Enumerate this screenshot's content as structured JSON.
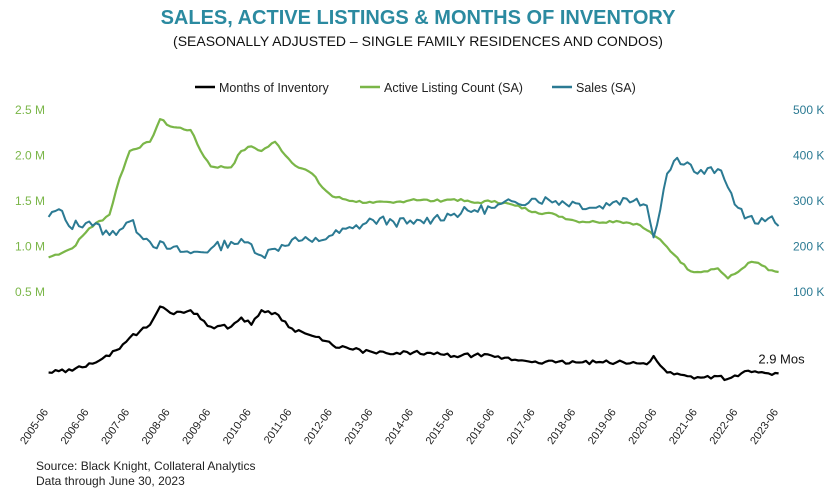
{
  "chart_data": {
    "type": "line",
    "title": "SALES, ACTIVE LISTINGS & MONTHS OF INVENTORY",
    "subtitle": "(SEASONALLY ADJUSTED – SINGLE FAMILY RESIDENCES AND CONDOS)",
    "legend": {
      "position": "top",
      "items": [
        {
          "label": "Months of Inventory",
          "color": "#000000"
        },
        {
          "label": "Active Listing Count (SA)",
          "color": "#7ab648"
        },
        {
          "label": "Sales (SA)",
          "color": "#2b7a93"
        }
      ]
    },
    "left_axis": {
      "range": [
        0.5,
        2.5
      ],
      "ticks": [
        {
          "value": 0.5,
          "label": "0.5 M"
        },
        {
          "value": 1.0,
          "label": "1.0 M"
        },
        {
          "value": 1.5,
          "label": "1.5 M"
        },
        {
          "value": 2.0,
          "label": "2.0 M"
        },
        {
          "value": 2.5,
          "label": "2.5 M"
        }
      ]
    },
    "right_axis": {
      "range": [
        100,
        500
      ],
      "ticks": [
        {
          "value": 100,
          "label": "100 K"
        },
        {
          "value": 200,
          "label": "200 K"
        },
        {
          "value": 300,
          "label": "300 K"
        },
        {
          "value": 400,
          "label": "400 K"
        },
        {
          "value": 500,
          "label": "500 K"
        }
      ]
    },
    "x_ticks": [
      "2005-06",
      "2006-06",
      "2007-06",
      "2008-06",
      "2009-06",
      "2010-06",
      "2011-06",
      "2012-06",
      "2013-06",
      "2014-06",
      "2015-06",
      "2016-06",
      "2017-06",
      "2018-06",
      "2019-06",
      "2020-06",
      "2021-06",
      "2022-06",
      "2023-06"
    ],
    "grid": false,
    "series": [
      {
        "name": "Active Listing Count (SA)",
        "axis": "left",
        "unit": "M",
        "color": "#7ab648",
        "points": [
          [
            "2005-06",
            0.88
          ],
          [
            "2006-01",
            0.98
          ],
          [
            "2006-06",
            1.2
          ],
          [
            "2006-12",
            1.35
          ],
          [
            "2007-03",
            1.75
          ],
          [
            "2007-06",
            2.05
          ],
          [
            "2007-12",
            2.15
          ],
          [
            "2008-03",
            2.4
          ],
          [
            "2008-06",
            2.32
          ],
          [
            "2008-12",
            2.28
          ],
          [
            "2009-03",
            2.05
          ],
          [
            "2009-06",
            1.88
          ],
          [
            "2009-12",
            1.87
          ],
          [
            "2010-03",
            2.05
          ],
          [
            "2010-06",
            2.1
          ],
          [
            "2010-09",
            2.05
          ],
          [
            "2011-01",
            2.15
          ],
          [
            "2011-06",
            1.92
          ],
          [
            "2011-12",
            1.8
          ],
          [
            "2012-03",
            1.65
          ],
          [
            "2012-06",
            1.55
          ],
          [
            "2012-12",
            1.5
          ],
          [
            "2013-06",
            1.48
          ],
          [
            "2013-12",
            1.48
          ],
          [
            "2014-06",
            1.52
          ],
          [
            "2014-12",
            1.5
          ],
          [
            "2015-06",
            1.52
          ],
          [
            "2015-12",
            1.48
          ],
          [
            "2016-06",
            1.5
          ],
          [
            "2016-12",
            1.45
          ],
          [
            "2017-06",
            1.38
          ],
          [
            "2017-12",
            1.35
          ],
          [
            "2018-06",
            1.28
          ],
          [
            "2018-12",
            1.27
          ],
          [
            "2019-06",
            1.28
          ],
          [
            "2019-12",
            1.25
          ],
          [
            "2020-03",
            1.18
          ],
          [
            "2020-06",
            1.1
          ],
          [
            "2020-12",
            0.88
          ],
          [
            "2021-03",
            0.75
          ],
          [
            "2021-06",
            0.72
          ],
          [
            "2021-12",
            0.76
          ],
          [
            "2022-03",
            0.65
          ],
          [
            "2022-06",
            0.72
          ],
          [
            "2022-09",
            0.82
          ],
          [
            "2022-12",
            0.82
          ],
          [
            "2023-03",
            0.74
          ],
          [
            "2023-06",
            0.72
          ]
        ]
      },
      {
        "name": "Sales (SA)",
        "axis": "right",
        "unit": "K",
        "color": "#2b7a93",
        "points": [
          [
            "2005-06",
            265
          ],
          [
            "2005-09",
            282
          ],
          [
            "2005-12",
            245
          ],
          [
            "2006-06",
            255
          ],
          [
            "2006-12",
            225
          ],
          [
            "2007-06",
            255
          ],
          [
            "2007-12",
            210
          ],
          [
            "2008-06",
            195
          ],
          [
            "2008-12",
            185
          ],
          [
            "2009-06",
            195
          ],
          [
            "2009-12",
            210
          ],
          [
            "2010-06",
            205
          ],
          [
            "2010-09",
            180
          ],
          [
            "2011-01",
            195
          ],
          [
            "2011-06",
            215
          ],
          [
            "2011-12",
            210
          ],
          [
            "2012-06",
            225
          ],
          [
            "2012-12",
            240
          ],
          [
            "2013-06",
            258
          ],
          [
            "2013-12",
            255
          ],
          [
            "2014-06",
            250
          ],
          [
            "2014-12",
            262
          ],
          [
            "2015-06",
            272
          ],
          [
            "2015-12",
            280
          ],
          [
            "2016-06",
            285
          ],
          [
            "2016-12",
            298
          ],
          [
            "2017-06",
            305
          ],
          [
            "2017-12",
            300
          ],
          [
            "2018-06",
            295
          ],
          [
            "2018-12",
            285
          ],
          [
            "2019-06",
            300
          ],
          [
            "2019-12",
            305
          ],
          [
            "2020-03",
            290
          ],
          [
            "2020-05",
            220
          ],
          [
            "2020-09",
            360
          ],
          [
            "2020-12",
            395
          ],
          [
            "2021-03",
            385
          ],
          [
            "2021-06",
            360
          ],
          [
            "2021-12",
            370
          ],
          [
            "2022-03",
            330
          ],
          [
            "2022-06",
            285
          ],
          [
            "2022-09",
            265
          ],
          [
            "2022-12",
            250
          ],
          [
            "2023-03",
            262
          ],
          [
            "2023-06",
            245
          ]
        ]
      },
      {
        "name": "Months of Inventory",
        "axis": "none",
        "unit": "Mos",
        "color": "#000000",
        "points": [
          [
            "2005-06",
            3.0
          ],
          [
            "2006-01",
            3.2
          ],
          [
            "2006-06",
            4.0
          ],
          [
            "2006-12",
            4.8
          ],
          [
            "2007-06",
            6.8
          ],
          [
            "2007-12",
            8.2
          ],
          [
            "2008-03",
            10.2
          ],
          [
            "2008-06",
            9.5
          ],
          [
            "2008-12",
            9.8
          ],
          [
            "2009-06",
            8.0
          ],
          [
            "2009-12",
            8.0
          ],
          [
            "2010-03",
            9.0
          ],
          [
            "2010-06",
            8.2
          ],
          [
            "2010-09",
            9.8
          ],
          [
            "2011-01",
            9.5
          ],
          [
            "2011-06",
            7.8
          ],
          [
            "2011-12",
            7.0
          ],
          [
            "2012-06",
            6.0
          ],
          [
            "2012-12",
            5.5
          ],
          [
            "2013-06",
            5.2
          ],
          [
            "2013-12",
            5.0
          ],
          [
            "2014-06",
            5.2
          ],
          [
            "2014-12",
            5.0
          ],
          [
            "2015-06",
            4.8
          ],
          [
            "2015-12",
            4.9
          ],
          [
            "2016-06",
            4.7
          ],
          [
            "2016-12",
            4.4
          ],
          [
            "2017-06",
            4.2
          ],
          [
            "2017-12",
            4.1
          ],
          [
            "2018-06",
            4.1
          ],
          [
            "2018-12",
            4.1
          ],
          [
            "2019-06",
            4.1
          ],
          [
            "2019-12",
            4.0
          ],
          [
            "2020-03",
            3.9
          ],
          [
            "2020-05",
            4.8
          ],
          [
            "2020-09",
            3.0
          ],
          [
            "2021-03",
            2.6
          ],
          [
            "2021-06",
            2.5
          ],
          [
            "2021-12",
            2.6
          ],
          [
            "2022-03",
            2.3
          ],
          [
            "2022-06",
            2.6
          ],
          [
            "2022-09",
            3.2
          ],
          [
            "2022-12",
            3.0
          ],
          [
            "2023-03",
            2.9
          ],
          [
            "2023-06",
            2.9
          ]
        ]
      }
    ],
    "moi_scale": [
      0,
      12
    ],
    "annotations": [
      {
        "text": "2.9 Mos",
        "anchor": "2023-06"
      }
    ],
    "source_lines": [
      "Source: Black Knight, Collateral Analytics",
      "Data through June 30, 2023"
    ]
  }
}
